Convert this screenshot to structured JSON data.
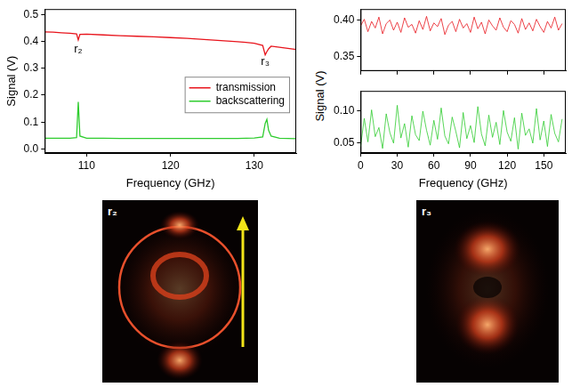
{
  "chart_data": [
    {
      "type": "line",
      "xlabel": "Frequency (GHz)",
      "ylabel": "Signal (V)",
      "xlim": [
        105,
        135
      ],
      "xticks": [
        110,
        120,
        130
      ],
      "ylim": [
        -0.015,
        0.52
      ],
      "yticks": [
        {
          "value": 0,
          "label": "0.0"
        },
        0.1,
        0.2,
        0.3,
        0.4,
        0.5
      ],
      "grid": false,
      "legend": "right",
      "x": [
        105,
        106,
        107,
        108,
        108.8,
        109,
        109.2,
        110,
        112,
        114,
        116,
        118,
        120,
        122,
        124,
        126,
        128,
        129,
        130,
        131,
        131.3,
        131.5,
        131.7,
        132,
        133,
        134,
        135
      ],
      "series": [
        {
          "name": "transmission",
          "color": "#e8141c",
          "values": [
            0.435,
            0.434,
            0.432,
            0.43,
            0.428,
            0.405,
            0.426,
            0.427,
            0.424,
            0.421,
            0.419,
            0.417,
            0.414,
            0.411,
            0.407,
            0.403,
            0.399,
            0.396,
            0.393,
            0.385,
            0.35,
            0.362,
            0.372,
            0.382,
            0.378,
            0.374,
            0.37
          ]
        },
        {
          "name": "backscattering",
          "color": "#2ecc2e",
          "values": [
            0.04,
            0.04,
            0.04,
            0.04,
            0.042,
            0.175,
            0.048,
            0.04,
            0.04,
            0.039,
            0.039,
            0.039,
            0.039,
            0.039,
            0.039,
            0.039,
            0.039,
            0.04,
            0.041,
            0.045,
            0.095,
            0.11,
            0.07,
            0.048,
            0.04,
            0.039,
            0.038
          ]
        }
      ],
      "annotations": [
        {
          "text": "r₂",
          "x": 109,
          "y": 0.37
        },
        {
          "text": "r₃",
          "x": 131.3,
          "y": 0.325
        }
      ]
    },
    {
      "type": "line",
      "ylabel": "Signal (V)",
      "xlim": [
        0,
        168
      ],
      "xticks": [
        0,
        30,
        60,
        90,
        120,
        150
      ],
      "ylim": [
        0.33,
        0.415
      ],
      "yticks": [
        0.35,
        {
          "value": 0.4,
          "label": "0.40"
        }
      ],
      "grid": false,
      "tick_labels": "y",
      "x": [
        0,
        3,
        6,
        9,
        12,
        15,
        18,
        21,
        24,
        27,
        30,
        33,
        36,
        39,
        42,
        45,
        48,
        51,
        54,
        57,
        60,
        63,
        66,
        69,
        72,
        75,
        78,
        81,
        84,
        87,
        90,
        93,
        96,
        99,
        102,
        105,
        108,
        111,
        114,
        117,
        120,
        123,
        126,
        129,
        132,
        135,
        138,
        141,
        144,
        147,
        150,
        153,
        156,
        159,
        162,
        165
      ],
      "series": [
        {
          "color": "#e8141c",
          "values": [
            0.392,
            0.401,
            0.384,
            0.398,
            0.389,
            0.404,
            0.381,
            0.395,
            0.4,
            0.386,
            0.397,
            0.383,
            0.403,
            0.39,
            0.394,
            0.382,
            0.399,
            0.387,
            0.405,
            0.385,
            0.396,
            0.391,
            0.402,
            0.38,
            0.393,
            0.398,
            0.384,
            0.401,
            0.389,
            0.395,
            0.383,
            0.404,
            0.388,
            0.397,
            0.381,
            0.4,
            0.392,
            0.386,
            0.403,
            0.39,
            0.384,
            0.399,
            0.394,
            0.382,
            0.402,
            0.387,
            0.396,
            0.385,
            0.401,
            0.391,
            0.383,
            0.398,
            0.389,
            0.404,
            0.386,
            0.395
          ]
        }
      ]
    },
    {
      "type": "line",
      "xlabel": "Frequency (GHz)",
      "xlim": [
        0,
        168
      ],
      "xticks": [
        0,
        30,
        60,
        90,
        120,
        150
      ],
      "ylim": [
        0.035,
        0.13
      ],
      "yticks": [
        0.05,
        {
          "value": 0.1,
          "label": "0.10"
        }
      ],
      "grid": false,
      "x": [
        0,
        3,
        6,
        9,
        12,
        15,
        18,
        21,
        24,
        27,
        30,
        33,
        36,
        39,
        42,
        45,
        48,
        51,
        54,
        57,
        60,
        63,
        66,
        69,
        72,
        75,
        78,
        81,
        84,
        87,
        90,
        93,
        96,
        99,
        102,
        105,
        108,
        111,
        114,
        117,
        120,
        123,
        126,
        129,
        132,
        135,
        138,
        141,
        144,
        147,
        150,
        153,
        156,
        159,
        162,
        165
      ],
      "series": [
        {
          "color": "#2ecc2e",
          "values": [
            0.045,
            0.088,
            0.052,
            0.101,
            0.06,
            0.074,
            0.042,
            0.095,
            0.066,
            0.05,
            0.108,
            0.058,
            0.08,
            0.044,
            0.092,
            0.063,
            0.054,
            0.099,
            0.07,
            0.047,
            0.085,
            0.056,
            0.104,
            0.061,
            0.049,
            0.09,
            0.068,
            0.043,
            0.097,
            0.057,
            0.077,
            0.051,
            0.106,
            0.064,
            0.046,
            0.093,
            0.059,
            0.082,
            0.048,
            0.1,
            0.067,
            0.053,
            0.089,
            0.041,
            0.096,
            0.062,
            0.072,
            0.05,
            0.103,
            0.055,
            0.084,
            0.045,
            0.094,
            0.065,
            0.052,
            0.087
          ]
        }
      ]
    }
  ],
  "images": [
    {
      "label": "r₂"
    },
    {
      "label": "r₃"
    }
  ]
}
